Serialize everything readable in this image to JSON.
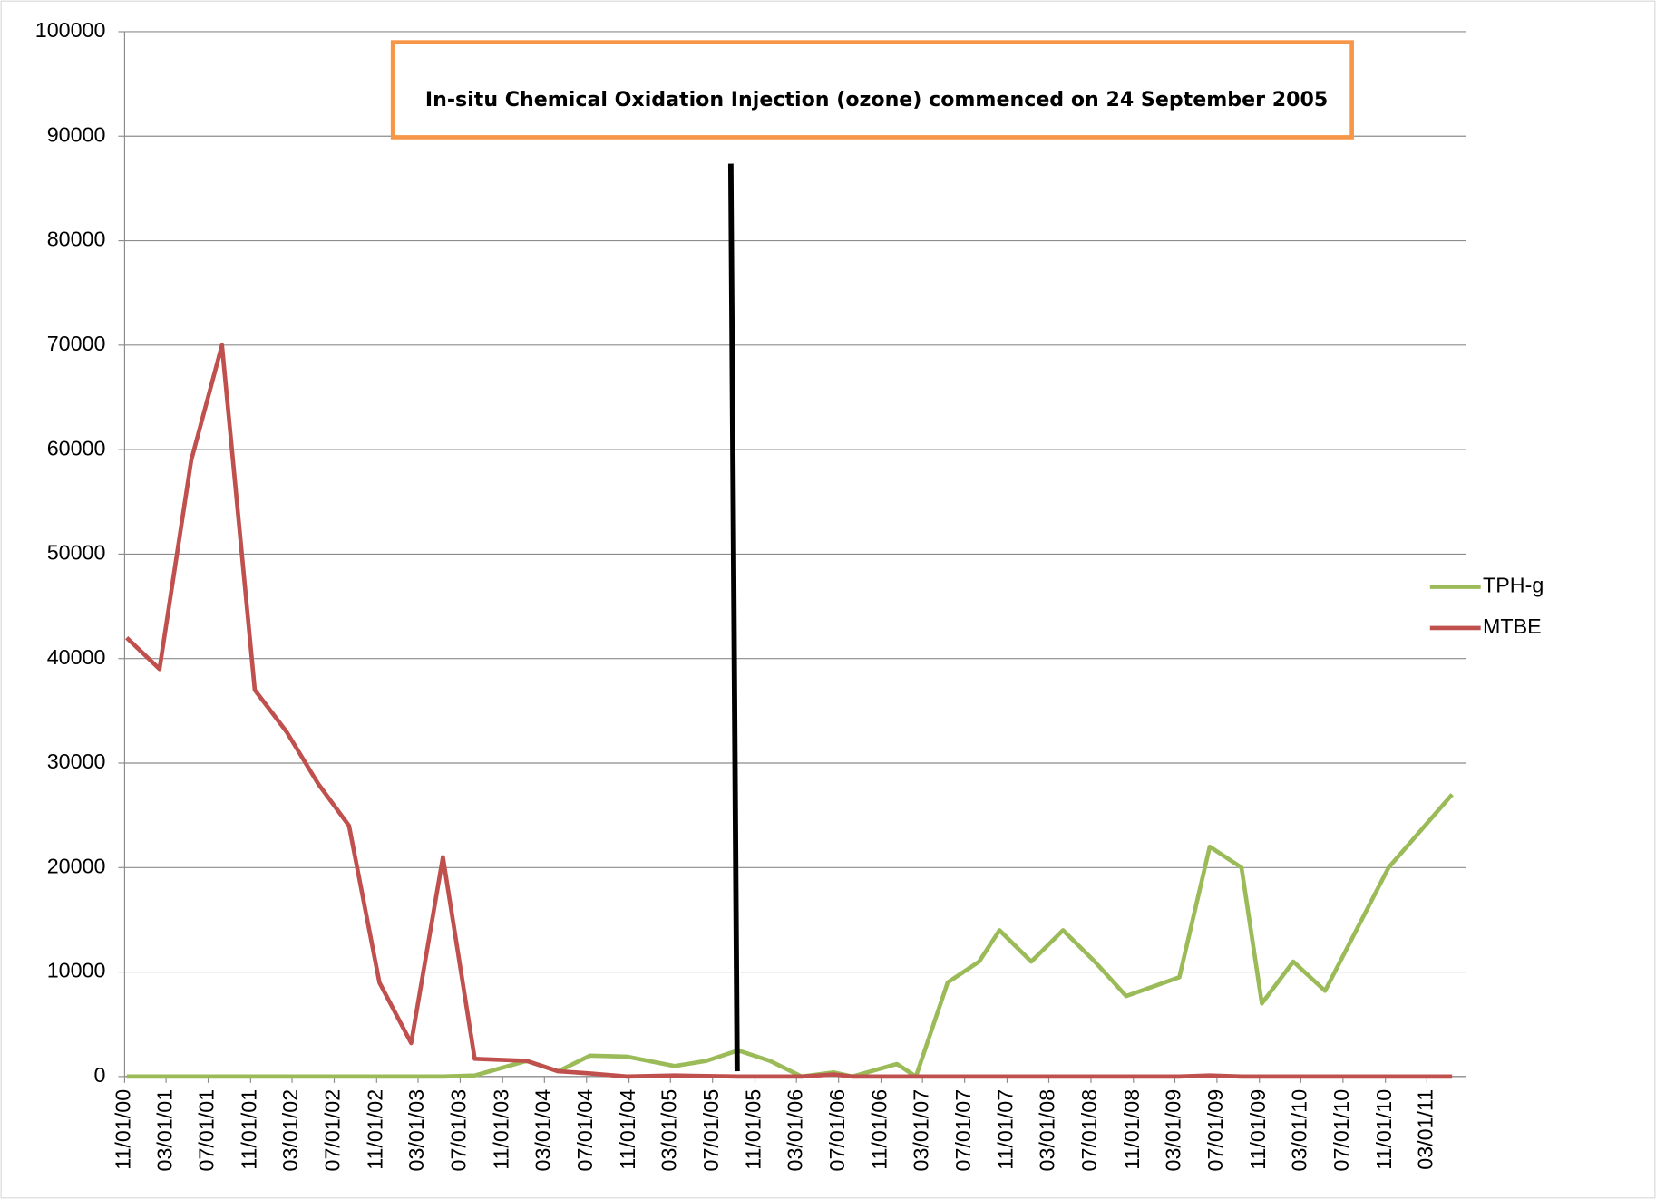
{
  "chart_data": {
    "type": "line",
    "annotation": "In-situ Chemical Oxidation Injection (ozone) commenced on 24 September 2005",
    "x": [
      "11/07/00",
      "02/10/01",
      "05/13/01",
      "08/10/01",
      "11/13/01",
      "02/13/02",
      "05/16/02",
      "08/13/02",
      "11/09/02",
      "02/09/03",
      "05/12/03",
      "08/12/03",
      "01/09/04",
      "04/10/04",
      "07/11/04",
      "10/26/04",
      "03/13/05",
      "06/13/05",
      "09/13/05",
      "12/14/05",
      "03/16/06",
      "06/16/06",
      "08/10/06",
      "12/17/06",
      "02/10/07",
      "05/13/07",
      "08/12/07",
      "10/10/07",
      "01/10/08",
      "04/11/08",
      "07/12/08",
      "10/11/08",
      "03/14/09",
      "06/10/09",
      "09/10/09",
      "11/08/09",
      "02/07/10",
      "05/10/10",
      "11/10/10",
      "05/13/11"
    ],
    "series": [
      {
        "name": "TPH-g",
        "color": "#9bbb59",
        "values": [
          0,
          0,
          0,
          0,
          0,
          0,
          0,
          0,
          0,
          0,
          0,
          100,
          1500,
          500,
          2000,
          1900,
          1000,
          1500,
          2500,
          1500,
          0,
          400,
          0,
          1200,
          0,
          9000,
          11000,
          14000,
          11000,
          14000,
          11000,
          7700,
          9500,
          22000,
          20000,
          7000,
          11000,
          8200,
          20000,
          27000
        ]
      },
      {
        "name": "MTBE",
        "color": "#c0504d",
        "values": [
          42000,
          39000,
          59000,
          70000,
          37000,
          33000,
          28000,
          24000,
          9000,
          3200,
          21000,
          1700,
          1500,
          500,
          300,
          0,
          100,
          50,
          0,
          0,
          0,
          200,
          0,
          0,
          0,
          0,
          0,
          0,
          0,
          0,
          0,
          0,
          0,
          100,
          0,
          0,
          0,
          0,
          0,
          0
        ]
      }
    ],
    "xlim": [
      "11/01/00",
      "06/22/11"
    ],
    "xticks": [
      "11/01/00",
      "03/01/01",
      "07/01/01",
      "11/01/01",
      "03/01/02",
      "07/01/02",
      "11/01/02",
      "03/01/03",
      "07/01/03",
      "11/01/03",
      "03/01/04",
      "07/01/04",
      "11/01/04",
      "03/01/05",
      "07/01/05",
      "11/01/05",
      "03/01/06",
      "07/01/06",
      "11/01/06",
      "03/01/07",
      "07/01/07",
      "11/01/07",
      "03/01/08",
      "07/01/08",
      "11/01/08",
      "03/01/09",
      "07/01/09",
      "11/01/09",
      "03/01/10",
      "07/01/10",
      "11/01/10",
      "03/01/11"
    ],
    "ylim": [
      0,
      100000
    ],
    "yticks": [
      0,
      10000,
      20000,
      30000,
      40000,
      50000,
      60000,
      70000,
      80000,
      90000,
      100000
    ],
    "grid": true,
    "legend": "right"
  }
}
